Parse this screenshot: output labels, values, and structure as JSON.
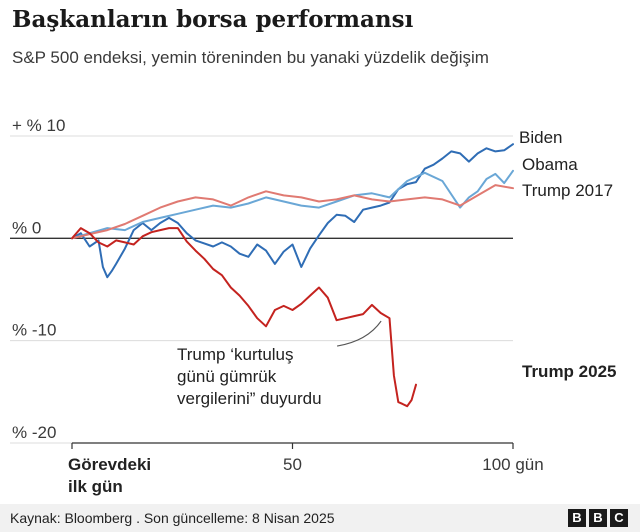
{
  "title": "Başkanların borsa performansı",
  "subtitle": "S&P 500 endeksi, yemin töreninden bu yanaki yüzdelik değişim",
  "footer": {
    "source": "Kaynak: Bloomberg . Son güncelleme: 8 Nisan 2025",
    "logo_letters": [
      "B",
      "B",
      "C"
    ]
  },
  "chart_data": {
    "type": "line",
    "title": "Başkanların borsa performansı",
    "subtitle": "S&P 500 endeksi, yemin töreninden bu yanaki yüzdelik değişim",
    "xlim": [
      0,
      100
    ],
    "ylim": [
      -20,
      10
    ],
    "x_ticks": [
      {
        "value": 0,
        "label": "Görevdeki\nilk gün"
      },
      {
        "value": 50,
        "label": "50"
      },
      {
        "value": 100,
        "label": "100 gün"
      }
    ],
    "y_ticks": [
      {
        "value": 10,
        "label": "+ % 10"
      },
      {
        "value": 0,
        "label": "% 0"
      },
      {
        "value": -10,
        "label": "% -10"
      },
      {
        "value": -20,
        "label": "% -20"
      }
    ],
    "grid": true,
    "annotation": {
      "text": "Trump ‘kurtuluş\ngünü gümrük\nvergilerini” duyurdu",
      "target": [
        71,
        -7.5
      ]
    },
    "series": [
      {
        "name": "Biden",
        "color": "#2f6db5",
        "label_style": "normal",
        "x": [
          0,
          2,
          4,
          6,
          7,
          8,
          9,
          10,
          12,
          14,
          16,
          18,
          20,
          22,
          24,
          26,
          28,
          30,
          32,
          34,
          36,
          38,
          40,
          42,
          44,
          46,
          48,
          50,
          52,
          54,
          56,
          58,
          60,
          62,
          64,
          66,
          68,
          70,
          72,
          74,
          76,
          78,
          80,
          82,
          84,
          86,
          88,
          90,
          92,
          94,
          96,
          98,
          100
        ],
        "y": [
          0,
          0.5,
          -0.8,
          -0.2,
          -2.8,
          -3.8,
          -3.2,
          -2.5,
          -1.0,
          0.8,
          1.5,
          0.8,
          1.5,
          2.0,
          1.5,
          0.5,
          -0.2,
          -0.5,
          -0.8,
          -0.4,
          -0.8,
          -1.5,
          -1.8,
          -0.6,
          -1.2,
          -2.5,
          -1.3,
          -0.6,
          -2.8,
          -1.0,
          0.3,
          1.5,
          2.3,
          2.2,
          1.6,
          2.8,
          3.0,
          3.2,
          3.5,
          4.8,
          5.3,
          5.5,
          6.8,
          7.2,
          7.8,
          8.5,
          8.3,
          7.5,
          8.3,
          8.8,
          8.5,
          8.6,
          9.2
        ]
      },
      {
        "name": "Obama",
        "color": "#6aa7d6",
        "label_style": "normal",
        "x": [
          0,
          4,
          8,
          12,
          16,
          20,
          24,
          28,
          32,
          36,
          40,
          44,
          48,
          52,
          56,
          60,
          64,
          68,
          72,
          76,
          80,
          84,
          88,
          90,
          92,
          94,
          96,
          98,
          100
        ],
        "y": [
          0,
          0.5,
          1.0,
          0.8,
          1.6,
          2.0,
          2.4,
          2.8,
          3.2,
          3.0,
          3.4,
          4.0,
          3.6,
          3.2,
          3.0,
          3.6,
          4.2,
          4.4,
          4.0,
          5.6,
          6.4,
          5.6,
          3.0,
          4.0,
          4.6,
          5.8,
          6.3,
          5.4,
          6.6
        ]
      },
      {
        "name": "Trump 2017",
        "color": "#e07a72",
        "label_style": "normal",
        "x": [
          0,
          4,
          8,
          12,
          16,
          20,
          24,
          28,
          32,
          36,
          40,
          44,
          48,
          52,
          56,
          60,
          64,
          68,
          72,
          76,
          80,
          84,
          88,
          92,
          96,
          100
        ],
        "y": [
          0,
          0.4,
          0.8,
          1.4,
          2.2,
          3.0,
          3.6,
          4.0,
          3.8,
          3.2,
          4.0,
          4.6,
          4.2,
          4.0,
          3.6,
          3.8,
          4.2,
          3.8,
          3.6,
          3.8,
          4.0,
          3.8,
          3.2,
          4.2,
          5.2,
          4.9
        ]
      },
      {
        "name": "Trump 2025",
        "color": "#c4231f",
        "label_style": "bold",
        "x": [
          0,
          2,
          4,
          6,
          8,
          10,
          12,
          14,
          16,
          18,
          20,
          22,
          24,
          26,
          28,
          30,
          32,
          34,
          36,
          38,
          40,
          42,
          44,
          46,
          48,
          50,
          52,
          54,
          56,
          58,
          60,
          62,
          64,
          66,
          68,
          70,
          72,
          73,
          74,
          75,
          76,
          77,
          78
        ],
        "y": [
          0,
          1.0,
          0.5,
          -0.4,
          -0.8,
          -0.2,
          -0.4,
          -0.6,
          0.2,
          0.6,
          0.8,
          1.0,
          1.0,
          -0.3,
          -1.2,
          -2.0,
          -3.0,
          -3.6,
          -4.8,
          -5.6,
          -6.6,
          -7.8,
          -8.6,
          -7.0,
          -6.6,
          -7.0,
          -6.4,
          -5.6,
          -4.8,
          -5.8,
          -8.0,
          -7.8,
          -7.6,
          -7.4,
          -6.5,
          -7.3,
          -7.8,
          -13.4,
          -16.0,
          -16.2,
          -16.4,
          -15.8,
          -14.3
        ]
      }
    ]
  }
}
